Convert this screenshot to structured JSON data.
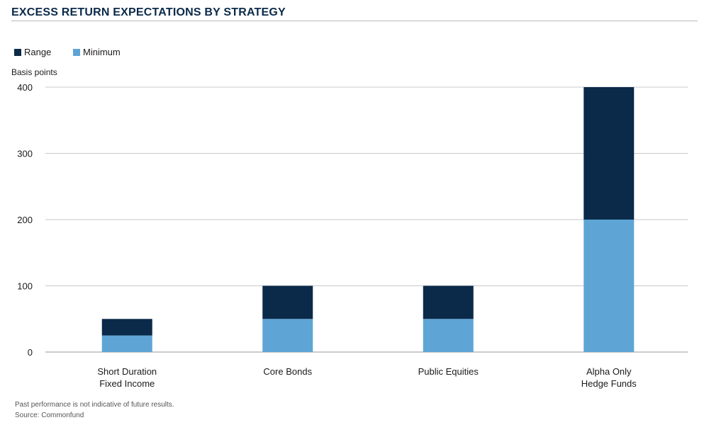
{
  "title": "EXCESS RETURN EXPECTATIONS BY STRATEGY",
  "unit_label": "Basis points",
  "footnotes": [
    "Past performance is not indicative of future results.",
    "Source: Commonfund"
  ],
  "colors": {
    "range": "#0b2a4a",
    "minimum": "#5ea5d6",
    "title": "#0b2a4a",
    "grid": "#c8c8c8"
  },
  "chart_data": {
    "type": "bar",
    "stacked": true,
    "categories": [
      [
        "Short Duration",
        "Fixed Income"
      ],
      [
        "Core Bonds"
      ],
      [
        "Public Equities"
      ],
      [
        "Alpha Only",
        "Hedge Funds"
      ]
    ],
    "series": [
      {
        "name": "Minimum",
        "color": "#5ea5d6",
        "values": [
          25,
          50,
          50,
          200
        ]
      },
      {
        "name": "Range",
        "color": "#0b2a4a",
        "values": [
          25,
          50,
          50,
          200
        ]
      }
    ],
    "legend": [
      {
        "name": "Range",
        "color": "#0b2a4a"
      },
      {
        "name": "Minimum",
        "color": "#5ea5d6"
      }
    ],
    "legend_position": "top-left",
    "ylabel": "Basis points",
    "ylim": [
      0,
      400
    ],
    "yticks": [
      0,
      100,
      200,
      300,
      400
    ],
    "grid": true
  }
}
